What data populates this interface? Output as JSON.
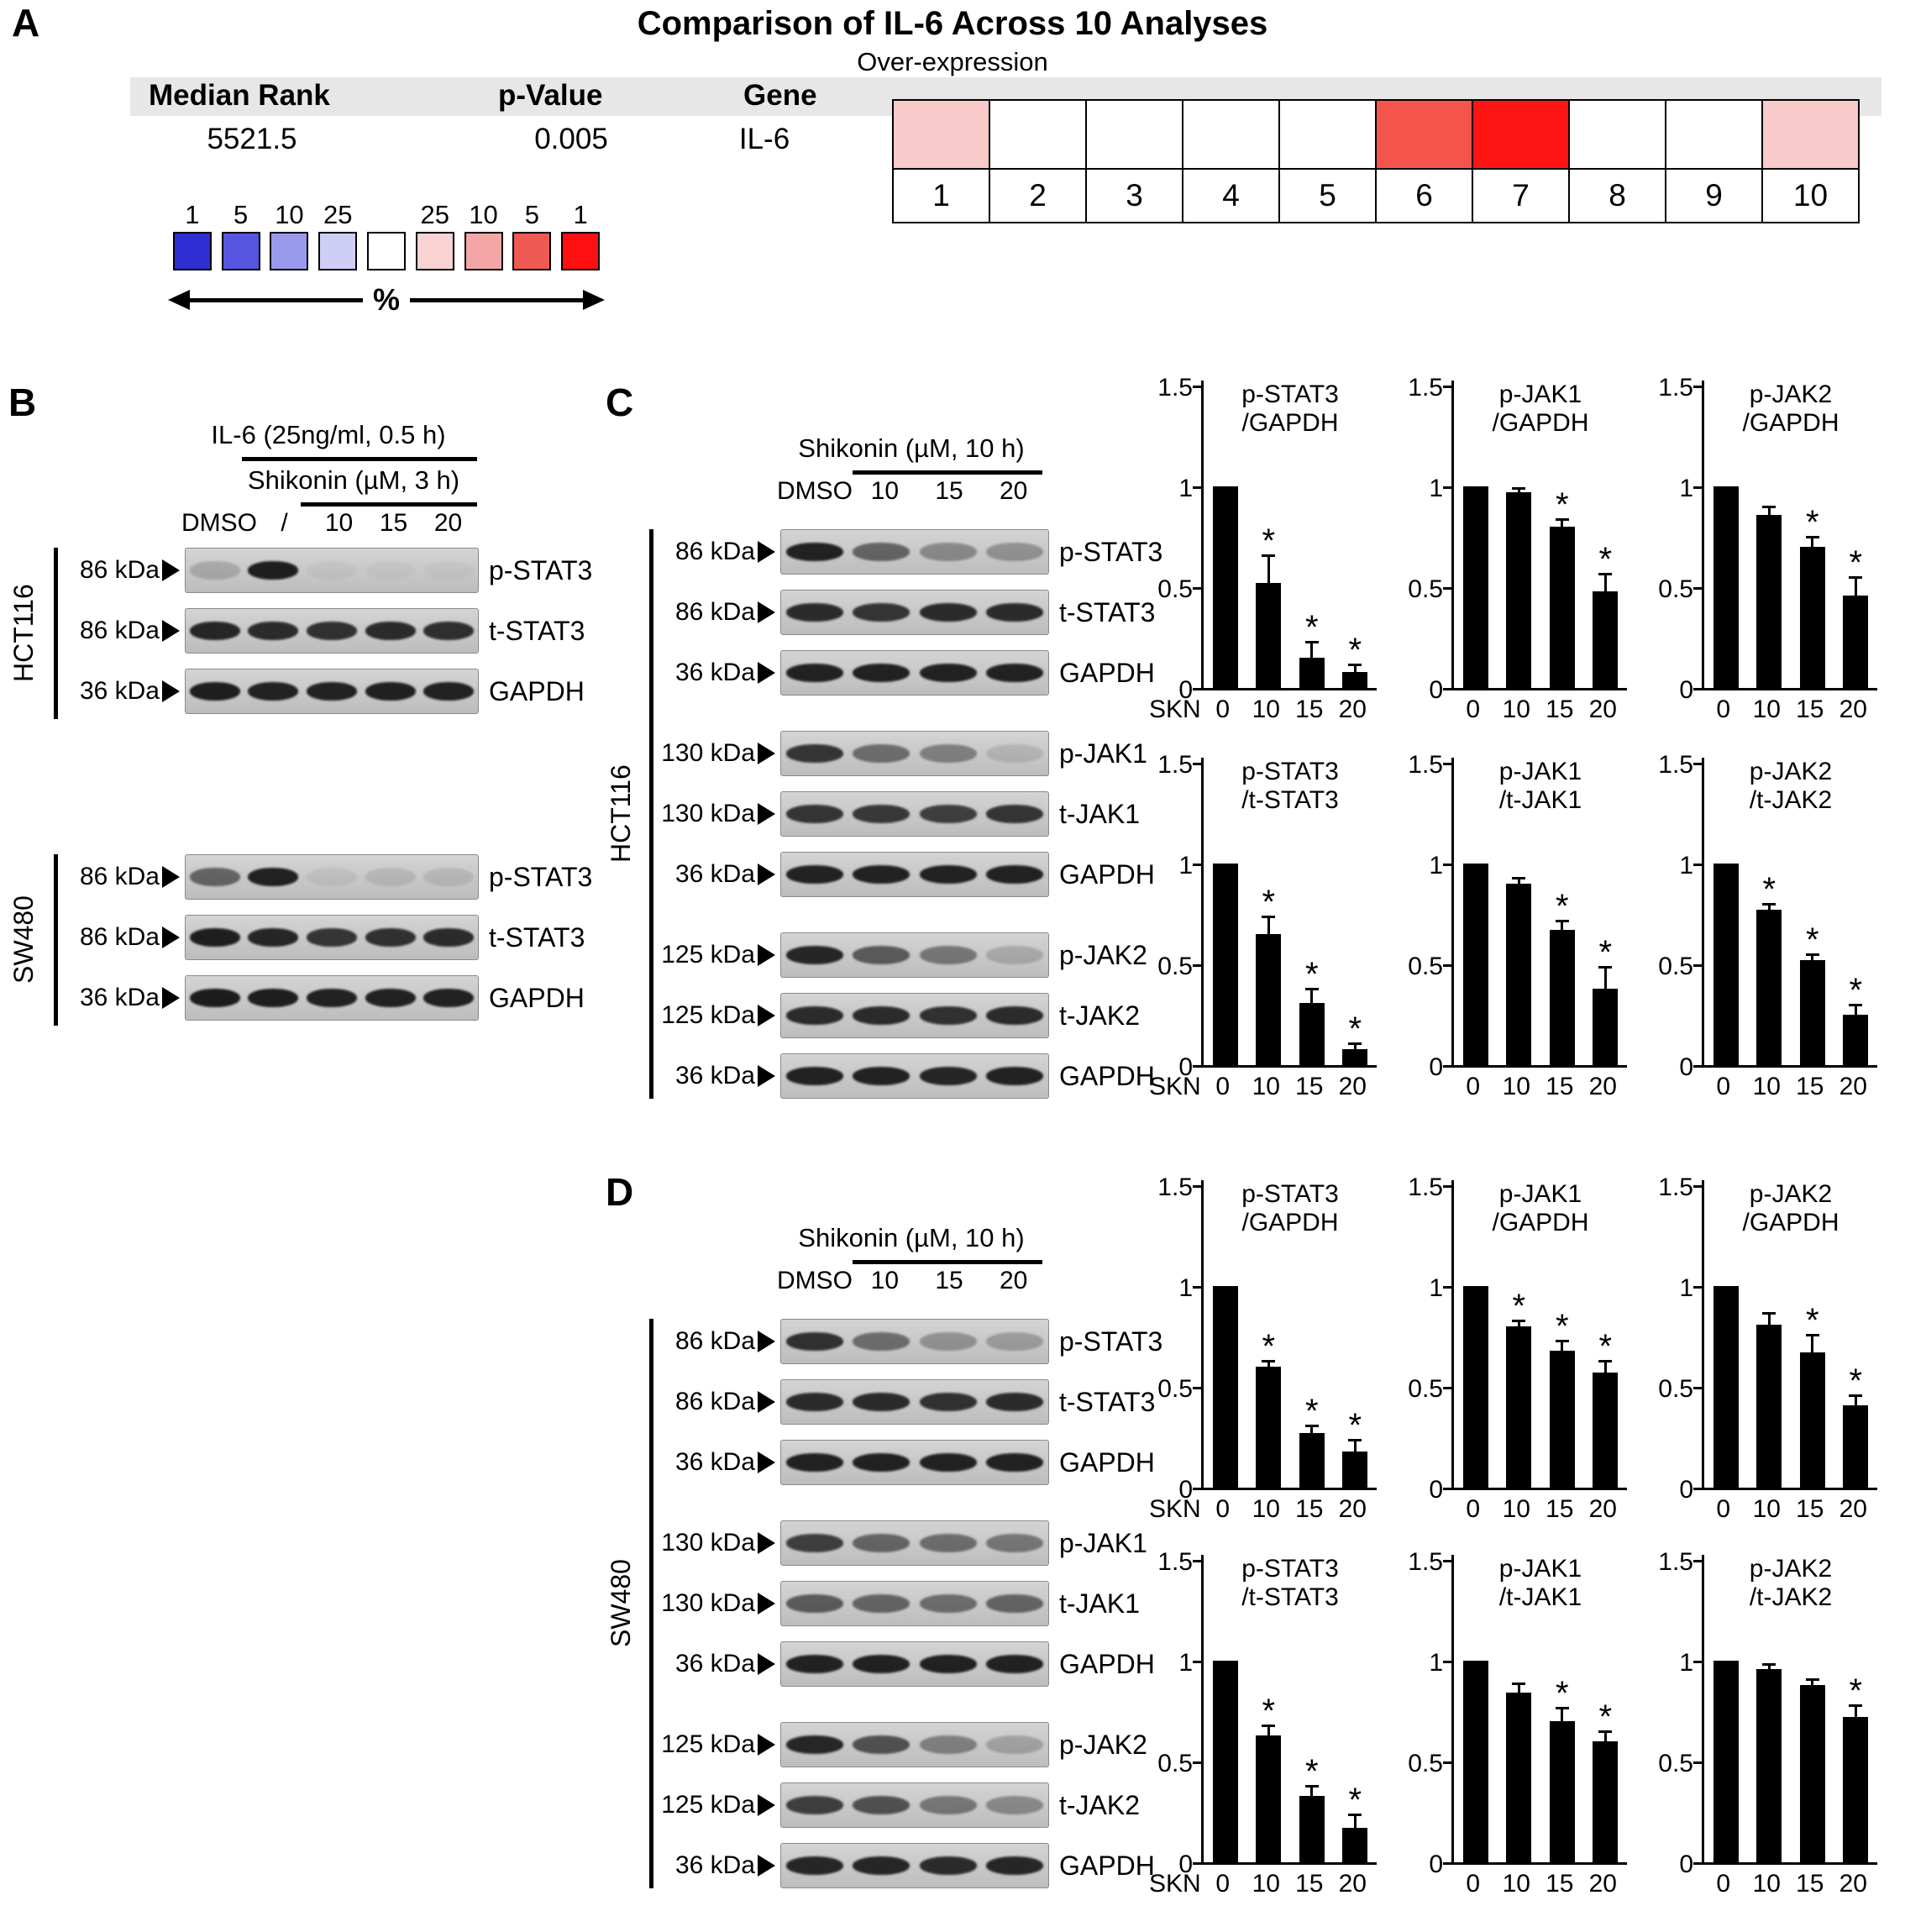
{
  "panelA": {
    "label": "A",
    "title": "Comparison of IL-6 Across 10 Analyses",
    "subtitle": "Over-expression",
    "columns": [
      "Median Rank",
      "p-Value",
      "Gene"
    ],
    "median_rank": "5521.5",
    "p_value": "0.005",
    "gene": "IL-6",
    "legend": {
      "percent_label": "%",
      "cells": [
        {
          "label": "1",
          "color": "#2e2ed2"
        },
        {
          "label": "5",
          "color": "#5656e0"
        },
        {
          "label": "10",
          "color": "#9a9aec"
        },
        {
          "label": "25",
          "color": "#cfcff6"
        },
        {
          "label": "",
          "color": "#ffffff"
        },
        {
          "label": "25",
          "color": "#f9d2d2"
        },
        {
          "label": "10",
          "color": "#f4a6a6"
        },
        {
          "label": "5",
          "color": "#ee5a52"
        },
        {
          "label": "1",
          "color": "#ff0f0f"
        }
      ]
    },
    "heatmap": {
      "cells": [
        {
          "num": "1",
          "color": "#f8caca"
        },
        {
          "num": "2",
          "color": "#ffffff"
        },
        {
          "num": "3",
          "color": "#ffffff"
        },
        {
          "num": "4",
          "color": "#ffffff"
        },
        {
          "num": "5",
          "color": "#ffffff"
        },
        {
          "num": "6",
          "color": "#f4544c"
        },
        {
          "num": "7",
          "color": "#ff1414"
        },
        {
          "num": "8",
          "color": "#ffffff"
        },
        {
          "num": "9",
          "color": "#ffffff"
        },
        {
          "num": "10",
          "color": "#f8caca"
        }
      ]
    }
  },
  "panelB": {
    "label": "B",
    "treatment_top": "IL-6 (25ng/ml, 0.5 h)",
    "treatment_bottom": "Shikonin (µM, 3 h)",
    "lanes": [
      "DMSO",
      "/",
      "10",
      "15",
      "20"
    ],
    "groups": [
      {
        "cell_line": "HCT116",
        "rows": [
          {
            "kda": "86 kDa",
            "protein": "p-STAT3",
            "bands": [
              0.18,
              0.92,
              0.04,
              0.03,
              0.03
            ]
          },
          {
            "kda": "86 kDa",
            "protein": "t-STAT3",
            "bands": [
              0.88,
              0.85,
              0.82,
              0.85,
              0.83
            ]
          },
          {
            "kda": "36 kDa",
            "protein": "GAPDH",
            "bands": [
              0.92,
              0.9,
              0.9,
              0.91,
              0.9
            ]
          }
        ]
      },
      {
        "cell_line": "SW480",
        "rows": [
          {
            "kda": "86 kDa",
            "protein": "p-STAT3",
            "bands": [
              0.55,
              0.9,
              0.06,
              0.1,
              0.1
            ]
          },
          {
            "kda": "86 kDa",
            "protein": "t-STAT3",
            "bands": [
              0.92,
              0.88,
              0.8,
              0.82,
              0.85
            ]
          },
          {
            "kda": "36 kDa",
            "protein": "GAPDH",
            "bands": [
              0.93,
              0.92,
              0.9,
              0.9,
              0.9
            ]
          }
        ]
      }
    ]
  },
  "panelC": {
    "label": "C",
    "treatment": "Shikonin (µM, 10 h)",
    "lanes": [
      "DMSO",
      "10",
      "15",
      "20"
    ],
    "cell_line": "HCT116",
    "blot_groups": [
      [
        {
          "kda": "86 kDa",
          "protein": "p-STAT3",
          "bands": [
            0.9,
            0.55,
            0.35,
            0.3
          ]
        },
        {
          "kda": "86 kDa",
          "protein": "t-STAT3",
          "bands": [
            0.85,
            0.8,
            0.85,
            0.85
          ]
        },
        {
          "kda": "36 kDa",
          "protein": "GAPDH",
          "bands": [
            0.9,
            0.9,
            0.9,
            0.9
          ]
        }
      ],
      [
        {
          "kda": "130 kDa",
          "protein": "p-JAK1",
          "bands": [
            0.8,
            0.5,
            0.4,
            0.12
          ]
        },
        {
          "kda": "130 kDa",
          "protein": "t-JAK1",
          "bands": [
            0.8,
            0.78,
            0.75,
            0.8
          ]
        },
        {
          "kda": "36 kDa",
          "protein": "GAPDH",
          "bands": [
            0.9,
            0.9,
            0.9,
            0.9
          ]
        }
      ],
      [
        {
          "kda": "125 kDa",
          "protein": "p-JAK2",
          "bands": [
            0.88,
            0.6,
            0.45,
            0.18
          ]
        },
        {
          "kda": "125 kDa",
          "protein": "t-JAK2",
          "bands": [
            0.85,
            0.85,
            0.82,
            0.85
          ]
        },
        {
          "kda": "36 kDa",
          "protein": "GAPDH",
          "bands": [
            0.9,
            0.9,
            0.88,
            0.9
          ]
        }
      ]
    ]
  },
  "panelD": {
    "label": "D",
    "treatment": "Shikonin (µM, 10 h)",
    "lanes": [
      "DMSO",
      "10",
      "15",
      "20"
    ],
    "cell_line": "SW480",
    "blot_groups": [
      [
        {
          "kda": "86 kDa",
          "protein": "p-STAT3",
          "bands": [
            0.82,
            0.5,
            0.3,
            0.25
          ]
        },
        {
          "kda": "86 kDa",
          "protein": "t-STAT3",
          "bands": [
            0.85,
            0.85,
            0.82,
            0.85
          ]
        },
        {
          "kda": "36 kDa",
          "protein": "GAPDH",
          "bands": [
            0.9,
            0.9,
            0.9,
            0.9
          ]
        }
      ],
      [
        {
          "kda": "130 kDa",
          "protein": "p-JAK1",
          "bands": [
            0.75,
            0.55,
            0.5,
            0.45
          ]
        },
        {
          "kda": "130 kDa",
          "protein": "t-JAK1",
          "bands": [
            0.6,
            0.55,
            0.5,
            0.55
          ]
        },
        {
          "kda": "36 kDa",
          "protein": "GAPDH",
          "bands": [
            0.9,
            0.9,
            0.9,
            0.9
          ]
        }
      ],
      [
        {
          "kda": "125 kDa",
          "protein": "p-JAK2",
          "bands": [
            0.88,
            0.65,
            0.4,
            0.22
          ]
        },
        {
          "kda": "125 kDa",
          "protein": "t-JAK2",
          "bands": [
            0.75,
            0.65,
            0.45,
            0.35
          ]
        },
        {
          "kda": "36 kDa",
          "protein": "GAPDH",
          "bands": [
            0.88,
            0.88,
            0.85,
            0.88
          ]
        }
      ]
    ]
  },
  "chart_data": [
    {
      "id": "C1",
      "panel": "C",
      "type": "bar",
      "title_lines": [
        "p-STAT3",
        "/GAPDH"
      ],
      "categories": [
        "0",
        "10",
        "15",
        "20"
      ],
      "values": [
        1,
        0.52,
        0.15,
        0.08
      ],
      "errors": [
        0,
        0.13,
        0.07,
        0.03
      ],
      "sig": [
        false,
        true,
        true,
        true
      ],
      "ylim": [
        0,
        1.5
      ],
      "ytick_values": [
        0,
        0.5,
        1,
        1.5
      ],
      "ytick_labels": [
        "0",
        "0.5",
        "1",
        "1.5"
      ],
      "x_prefix": "SKN"
    },
    {
      "id": "C2",
      "panel": "C",
      "type": "bar",
      "title_lines": [
        "p-JAK1",
        "/GAPDH"
      ],
      "categories": [
        "0",
        "10",
        "15",
        "20"
      ],
      "values": [
        1,
        0.97,
        0.8,
        0.48
      ],
      "errors": [
        0,
        0.015,
        0.03,
        0.08
      ],
      "sig": [
        false,
        false,
        true,
        true
      ],
      "ylim": [
        0,
        1.5
      ],
      "ytick_values": [
        0,
        0.5,
        1,
        1.5
      ],
      "ytick_labels": [
        "0",
        "0.5",
        "1",
        "1.5"
      ],
      "x_prefix": ""
    },
    {
      "id": "C3",
      "panel": "C",
      "type": "bar",
      "title_lines": [
        "p-JAK2",
        "/GAPDH"
      ],
      "categories": [
        "0",
        "10",
        "15",
        "20"
      ],
      "values": [
        1,
        0.86,
        0.7,
        0.46
      ],
      "errors": [
        0,
        0.03,
        0.04,
        0.08
      ],
      "sig": [
        false,
        false,
        true,
        true
      ],
      "ylim": [
        0,
        1.5
      ],
      "ytick_values": [
        0,
        0.5,
        1,
        1.5
      ],
      "ytick_labels": [
        "0",
        "0.5",
        "1",
        "1.5"
      ],
      "x_prefix": ""
    },
    {
      "id": "C4",
      "panel": "C",
      "type": "bar",
      "title_lines": [
        "p-STAT3",
        "/t-STAT3"
      ],
      "categories": [
        "0",
        "10",
        "15",
        "20"
      ],
      "values": [
        1,
        0.65,
        0.31,
        0.08
      ],
      "errors": [
        0,
        0.08,
        0.06,
        0.02
      ],
      "sig": [
        false,
        true,
        true,
        true
      ],
      "ylim": [
        0,
        1.5
      ],
      "ytick_values": [
        0,
        0.5,
        1,
        1.5
      ],
      "ytick_labels": [
        "0",
        "0.5",
        "1",
        "1.5"
      ],
      "x_prefix": "SKN"
    },
    {
      "id": "C5",
      "panel": "C",
      "type": "bar",
      "title_lines": [
        "p-JAK1",
        "/t-JAK1"
      ],
      "categories": [
        "0",
        "10",
        "15",
        "20"
      ],
      "values": [
        1,
        0.9,
        0.67,
        0.38
      ],
      "errors": [
        0,
        0.02,
        0.04,
        0.1
      ],
      "sig": [
        false,
        false,
        true,
        true
      ],
      "ylim": [
        0,
        1.5
      ],
      "ytick_values": [
        0,
        0.5,
        1,
        1.5
      ],
      "ytick_labels": [
        "0",
        "0.5",
        "1",
        "1.5"
      ],
      "x_prefix": ""
    },
    {
      "id": "C6",
      "panel": "C",
      "type": "bar",
      "title_lines": [
        "p-JAK2",
        "/t-JAK2"
      ],
      "categories": [
        "0",
        "10",
        "15",
        "20"
      ],
      "values": [
        1,
        0.77,
        0.52,
        0.25
      ],
      "errors": [
        0,
        0.02,
        0.02,
        0.04
      ],
      "sig": [
        false,
        true,
        true,
        true
      ],
      "ylim": [
        0,
        1.5
      ],
      "ytick_values": [
        0,
        0.5,
        1,
        1.5
      ],
      "ytick_labels": [
        "0",
        "0.5",
        "1",
        "1.5"
      ],
      "x_prefix": ""
    },
    {
      "id": "D1",
      "panel": "D",
      "type": "bar",
      "title_lines": [
        "p-STAT3",
        "/GAPDH"
      ],
      "categories": [
        "0",
        "10",
        "15",
        "20"
      ],
      "values": [
        1,
        0.6,
        0.27,
        0.18
      ],
      "errors": [
        0,
        0.02,
        0.03,
        0.05
      ],
      "sig": [
        false,
        true,
        true,
        true
      ],
      "ylim": [
        0,
        1.5
      ],
      "ytick_values": [
        0,
        0.5,
        1,
        1.5
      ],
      "ytick_labels": [
        "0",
        "0.5",
        "1",
        "1.5"
      ],
      "x_prefix": "SKN"
    },
    {
      "id": "D2",
      "panel": "D",
      "type": "bar",
      "title_lines": [
        "p-JAK1",
        "/GAPDH"
      ],
      "categories": [
        "0",
        "10",
        "15",
        "20"
      ],
      "values": [
        1,
        0.8,
        0.68,
        0.57
      ],
      "errors": [
        0,
        0.02,
        0.04,
        0.05
      ],
      "sig": [
        false,
        true,
        true,
        true
      ],
      "ylim": [
        0,
        1.5
      ],
      "ytick_values": [
        0,
        0.5,
        1,
        1.5
      ],
      "ytick_labels": [
        "0",
        "0.5",
        "1",
        "1.5"
      ],
      "x_prefix": ""
    },
    {
      "id": "D3",
      "panel": "D",
      "type": "bar",
      "title_lines": [
        "p-JAK2",
        "/GAPDH"
      ],
      "categories": [
        "0",
        "10",
        "15",
        "20"
      ],
      "values": [
        1,
        0.81,
        0.67,
        0.41
      ],
      "errors": [
        0,
        0.05,
        0.08,
        0.04
      ],
      "sig": [
        false,
        false,
        true,
        true
      ],
      "ylim": [
        0,
        1.5
      ],
      "ytick_values": [
        0,
        0.5,
        1,
        1.5
      ],
      "ytick_labels": [
        "0",
        "0.5",
        "1",
        "1.5"
      ],
      "x_prefix": ""
    },
    {
      "id": "D4",
      "panel": "D",
      "type": "bar",
      "title_lines": [
        "p-STAT3",
        "/t-STAT3"
      ],
      "categories": [
        "0",
        "10",
        "15",
        "20"
      ],
      "values": [
        1,
        0.63,
        0.33,
        0.17
      ],
      "errors": [
        0,
        0.04,
        0.04,
        0.06
      ],
      "sig": [
        false,
        true,
        true,
        true
      ],
      "ylim": [
        0,
        1.5
      ],
      "ytick_values": [
        0,
        0.5,
        1,
        1.5
      ],
      "ytick_labels": [
        "0",
        "0.5",
        "1",
        "1.5"
      ],
      "x_prefix": "SKN"
    },
    {
      "id": "D5",
      "panel": "D",
      "type": "bar",
      "title_lines": [
        "p-JAK1",
        "/t-JAK1"
      ],
      "categories": [
        "0",
        "10",
        "15",
        "20"
      ],
      "values": [
        1,
        0.84,
        0.7,
        0.6
      ],
      "errors": [
        0,
        0.04,
        0.06,
        0.04
      ],
      "sig": [
        false,
        false,
        true,
        true
      ],
      "ylim": [
        0,
        1.5
      ],
      "ytick_values": [
        0,
        0.5,
        1,
        1.5
      ],
      "ytick_labels": [
        "0",
        "0.5",
        "1",
        "1.5"
      ],
      "x_prefix": ""
    },
    {
      "id": "D6",
      "panel": "D",
      "type": "bar",
      "title_lines": [
        "p-JAK2",
        "/t-JAK2"
      ],
      "categories": [
        "0",
        "10",
        "15",
        "20"
      ],
      "values": [
        1,
        0.96,
        0.88,
        0.72
      ],
      "errors": [
        0,
        0.015,
        0.02,
        0.05
      ],
      "sig": [
        false,
        false,
        false,
        true
      ],
      "ylim": [
        0,
        1.5
      ],
      "ytick_values": [
        0,
        0.5,
        1,
        1.5
      ],
      "ytick_labels": [
        "0",
        "0.5",
        "1",
        "1.5"
      ],
      "x_prefix": ""
    }
  ]
}
